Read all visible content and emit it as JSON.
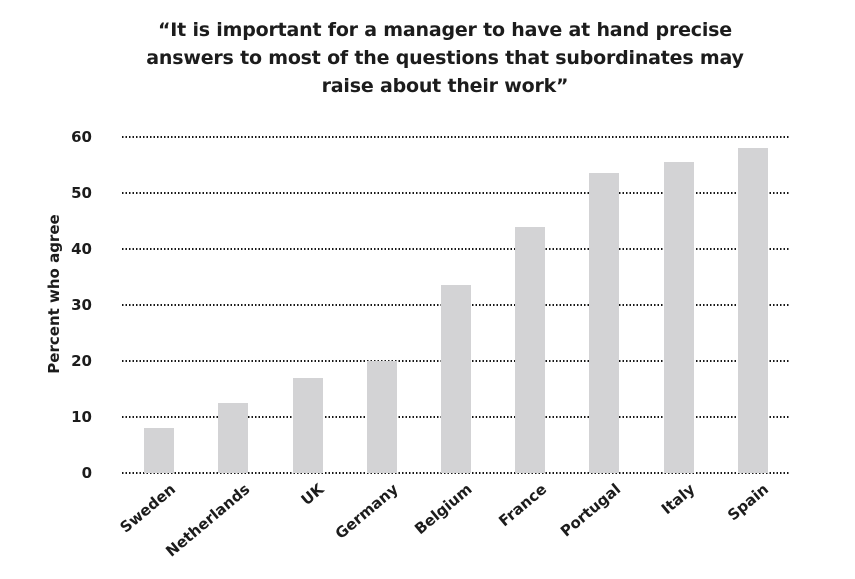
{
  "title": {
    "lines": [
      "“It is important for a manager to have at hand precise",
      "answers to most of the questions that subordinates may",
      "raise about their work”"
    ]
  },
  "chart_data": {
    "type": "bar",
    "title": "“It is important for a manager to have at hand precise answers to most of the questions that subordinates may raise about their work”",
    "categories": [
      "Sweden",
      "Netherlands",
      "UK",
      "Germany",
      "Belgium",
      "France",
      "Portugal",
      "Italy",
      "Spain"
    ],
    "values": [
      8,
      12.5,
      17,
      20,
      33.5,
      44,
      53.5,
      55.5,
      58
    ],
    "xlabel": "",
    "ylabel": "Percent who agree",
    "ylim": [
      0,
      60
    ],
    "yticks": [
      0,
      10,
      20,
      30,
      40,
      50,
      60
    ],
    "grid": "horizontal-dotted",
    "legend": "none",
    "bar_color": "#d3d3d5",
    "gridline_color": "#161616",
    "text_color": "#1c1c1c",
    "background_color": "#ffffff"
  }
}
